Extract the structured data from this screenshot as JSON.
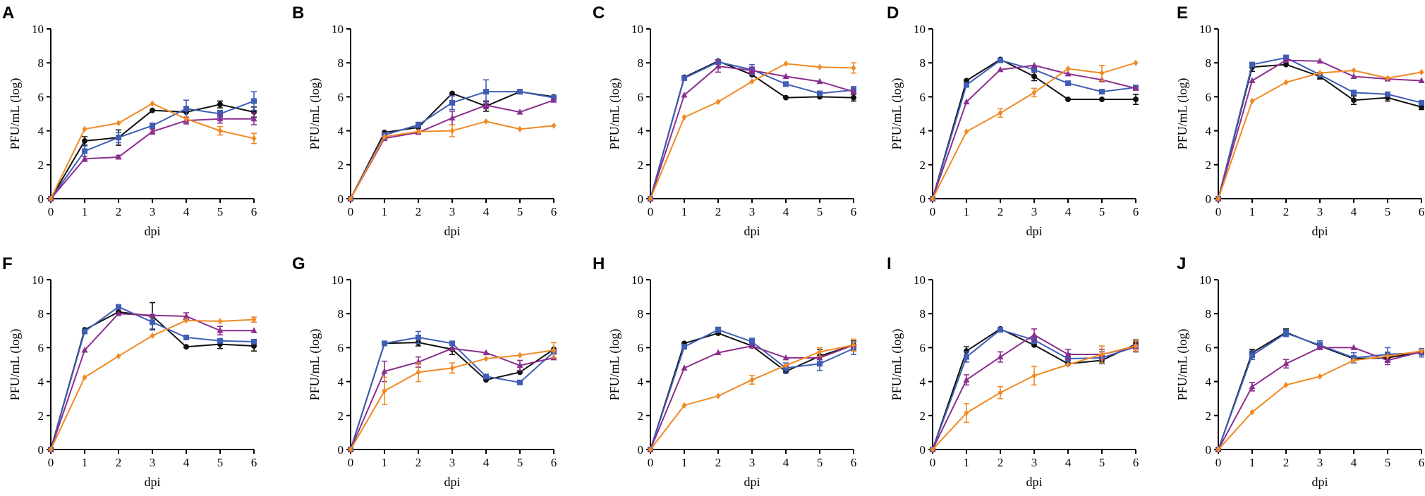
{
  "colors": {
    "black": "#111111",
    "blue": "#3f5eb5",
    "purple": "#8b2f8f",
    "orange": "#f08a24"
  },
  "chart_data": [
    {
      "panel": "A",
      "type": "line",
      "xlabel": "dpi",
      "ylabel": "PFU/mL (log)",
      "x": [
        0,
        1,
        2,
        3,
        4,
        5,
        6
      ],
      "ylim": [
        0,
        10
      ],
      "yticks": [
        0,
        2,
        4,
        6,
        8,
        10
      ],
      "series": [
        {
          "name": "black",
          "marker": "circle",
          "values": [
            0,
            3.4,
            3.6,
            5.2,
            5.1,
            5.55,
            5.1
          ],
          "errors": [
            0,
            0.25,
            0.45,
            0,
            0.3,
            0.2,
            0.3
          ]
        },
        {
          "name": "blue",
          "marker": "square",
          "values": [
            0,
            2.8,
            3.6,
            4.3,
            5.3,
            5.0,
            5.75
          ],
          "errors": [
            0,
            0.3,
            0.3,
            0.15,
            0.5,
            0.2,
            0.55
          ]
        },
        {
          "name": "purple",
          "marker": "triangle",
          "values": [
            0,
            2.35,
            2.45,
            3.95,
            4.6,
            4.7,
            4.7
          ],
          "errors": [
            0,
            0.15,
            0.1,
            0.15,
            0.2,
            0.25,
            0.35
          ]
        },
        {
          "name": "orange",
          "marker": "diamond",
          "values": [
            0,
            4.1,
            4.45,
            5.6,
            4.7,
            4.0,
            3.55
          ],
          "errors": [
            0,
            0,
            0,
            0,
            0,
            0.25,
            0.3
          ]
        }
      ]
    },
    {
      "panel": "B",
      "type": "line",
      "xlabel": "dpi",
      "ylabel": "PFU/mL (log)",
      "x": [
        0,
        1,
        2,
        3,
        4,
        5,
        6
      ],
      "ylim": [
        0,
        10
      ],
      "yticks": [
        0,
        2,
        4,
        6,
        8,
        10
      ],
      "series": [
        {
          "name": "black",
          "marker": "circle",
          "values": [
            0,
            3.9,
            4.2,
            6.2,
            5.45,
            6.3,
            6.0
          ],
          "errors": [
            0,
            0,
            0,
            0,
            0.3,
            0,
            0
          ]
        },
        {
          "name": "blue",
          "marker": "square",
          "values": [
            0,
            3.75,
            4.35,
            5.65,
            6.3,
            6.3,
            5.95
          ],
          "errors": [
            0,
            0,
            0.15,
            0.4,
            0.7,
            0,
            0
          ]
        },
        {
          "name": "purple",
          "marker": "triangle",
          "values": [
            0,
            3.55,
            3.9,
            4.75,
            5.5,
            5.1,
            5.8
          ],
          "errors": [
            0,
            0,
            0,
            0.4,
            0.2,
            0,
            0
          ]
        },
        {
          "name": "orange",
          "marker": "diamond",
          "values": [
            0,
            3.65,
            3.95,
            4.0,
            4.55,
            4.1,
            4.3
          ],
          "errors": [
            0,
            0,
            0,
            0.35,
            0,
            0,
            0
          ]
        }
      ]
    },
    {
      "panel": "C",
      "type": "line",
      "xlabel": "dpi",
      "ylabel": "PFU/mL (log)",
      "x": [
        0,
        1,
        2,
        3,
        4,
        5,
        6
      ],
      "ylim": [
        0,
        10
      ],
      "yticks": [
        0,
        2,
        4,
        6,
        8,
        10
      ],
      "series": [
        {
          "name": "black",
          "marker": "circle",
          "values": [
            0,
            7.15,
            8.1,
            7.3,
            5.95,
            6.0,
            5.95
          ],
          "errors": [
            0,
            0,
            0,
            0,
            0,
            0,
            0.2
          ]
        },
        {
          "name": "blue",
          "marker": "square",
          "values": [
            0,
            7.1,
            8.05,
            7.6,
            6.75,
            6.2,
            6.4
          ],
          "errors": [
            0,
            0,
            0,
            0.3,
            0,
            0,
            0.2
          ]
        },
        {
          "name": "purple",
          "marker": "triangle",
          "values": [
            0,
            6.1,
            7.8,
            7.55,
            7.2,
            6.9,
            6.3
          ],
          "errors": [
            0,
            0,
            0.35,
            0.2,
            0,
            0,
            0
          ]
        },
        {
          "name": "orange",
          "marker": "diamond",
          "values": [
            0,
            4.8,
            5.7,
            6.9,
            7.95,
            7.75,
            7.7
          ],
          "errors": [
            0,
            0,
            0,
            0,
            0,
            0,
            0.3
          ]
        }
      ]
    },
    {
      "panel": "D",
      "type": "line",
      "xlabel": "dpi",
      "ylabel": "PFU/mL (log)",
      "x": [
        0,
        1,
        2,
        3,
        4,
        5,
        6
      ],
      "ylim": [
        0,
        10
      ],
      "yticks": [
        0,
        2,
        4,
        6,
        8,
        10
      ],
      "series": [
        {
          "name": "black",
          "marker": "circle",
          "values": [
            0,
            6.95,
            8.2,
            7.2,
            5.85,
            5.85,
            5.85
          ],
          "errors": [
            0,
            0,
            0,
            0.25,
            0,
            0,
            0.3
          ]
        },
        {
          "name": "blue",
          "marker": "square",
          "values": [
            0,
            6.7,
            8.15,
            7.6,
            6.8,
            6.3,
            6.55
          ],
          "errors": [
            0,
            0,
            0,
            0,
            0,
            0,
            0
          ]
        },
        {
          "name": "purple",
          "marker": "triangle",
          "values": [
            0,
            5.7,
            7.6,
            7.85,
            7.35,
            7.0,
            6.5
          ],
          "errors": [
            0,
            0,
            0,
            0,
            0,
            0,
            0
          ]
        },
        {
          "name": "orange",
          "marker": "diamond",
          "values": [
            0,
            3.95,
            5.05,
            6.25,
            7.65,
            7.4,
            8.0
          ],
          "errors": [
            0,
            0,
            0.25,
            0.25,
            0,
            0.45,
            0
          ]
        }
      ]
    },
    {
      "panel": "E",
      "type": "line",
      "xlabel": "dpi",
      "ylabel": "PFU/mL (log)",
      "x": [
        0,
        1,
        2,
        3,
        4,
        5,
        6
      ],
      "ylim": [
        0,
        10
      ],
      "yticks": [
        0,
        2,
        4,
        6,
        8,
        10
      ],
      "series": [
        {
          "name": "black",
          "marker": "circle",
          "values": [
            0,
            7.75,
            7.9,
            7.2,
            5.8,
            5.95,
            5.4
          ],
          "errors": [
            0,
            0.25,
            0,
            0.15,
            0.25,
            0.2,
            0.15
          ]
        },
        {
          "name": "blue",
          "marker": "square",
          "values": [
            0,
            7.9,
            8.3,
            7.3,
            6.25,
            6.15,
            5.65
          ],
          "errors": [
            0,
            0,
            0.15,
            0,
            0,
            0,
            0
          ]
        },
        {
          "name": "purple",
          "marker": "triangle",
          "values": [
            0,
            6.95,
            8.15,
            8.1,
            7.2,
            7.05,
            6.95
          ],
          "errors": [
            0,
            0,
            0,
            0,
            0,
            0,
            0
          ]
        },
        {
          "name": "orange",
          "marker": "diamond",
          "values": [
            0,
            5.75,
            6.85,
            7.4,
            7.55,
            7.1,
            7.45
          ],
          "errors": [
            0,
            0,
            0,
            0,
            0,
            0,
            0
          ]
        }
      ]
    },
    {
      "panel": "F",
      "type": "line",
      "xlabel": "dpi",
      "ylabel": "PFU/mL (log)",
      "x": [
        0,
        1,
        2,
        3,
        4,
        5,
        6
      ],
      "ylim": [
        0,
        10
      ],
      "yticks": [
        0,
        2,
        4,
        6,
        8,
        10
      ],
      "series": [
        {
          "name": "black",
          "marker": "circle",
          "values": [
            0,
            7.05,
            8.1,
            7.85,
            6.05,
            6.2,
            6.1
          ],
          "errors": [
            0,
            0,
            0,
            0.8,
            0,
            0.25,
            0.3
          ]
        },
        {
          "name": "blue",
          "marker": "square",
          "values": [
            0,
            6.95,
            8.4,
            7.5,
            6.6,
            6.4,
            6.35
          ],
          "errors": [
            0,
            0,
            0,
            0.4,
            0,
            0,
            0
          ]
        },
        {
          "name": "purple",
          "marker": "triangle",
          "values": [
            0,
            5.85,
            8.0,
            7.9,
            7.85,
            7.0,
            7.0
          ],
          "errors": [
            0,
            0,
            0,
            0,
            0.2,
            0.25,
            0
          ]
        },
        {
          "name": "orange",
          "marker": "diamond",
          "values": [
            0,
            4.25,
            5.5,
            6.7,
            7.6,
            7.55,
            7.65
          ],
          "errors": [
            0,
            0,
            0,
            0,
            0,
            0,
            0.15
          ]
        }
      ]
    },
    {
      "panel": "G",
      "type": "line",
      "xlabel": "dpi",
      "ylabel": "PFU/mL (log)",
      "x": [
        0,
        1,
        2,
        3,
        4,
        5,
        6
      ],
      "ylim": [
        0,
        10
      ],
      "yticks": [
        0,
        2,
        4,
        6,
        8,
        10
      ],
      "series": [
        {
          "name": "black",
          "marker": "circle",
          "values": [
            0,
            6.25,
            6.3,
            5.9,
            4.1,
            4.55,
            5.9
          ],
          "errors": [
            0,
            0,
            0.2,
            0.3,
            0,
            0,
            0
          ]
        },
        {
          "name": "blue",
          "marker": "square",
          "values": [
            0,
            6.25,
            6.6,
            6.25,
            4.3,
            3.95,
            5.75
          ],
          "errors": [
            0,
            0,
            0.35,
            0,
            0,
            0,
            0
          ]
        },
        {
          "name": "purple",
          "marker": "triangle",
          "values": [
            0,
            4.6,
            5.15,
            5.95,
            5.7,
            4.95,
            5.4
          ],
          "errors": [
            0,
            0.6,
            0.3,
            0,
            0,
            0.3,
            0
          ]
        },
        {
          "name": "orange",
          "marker": "diamond",
          "values": [
            0,
            3.45,
            4.55,
            4.8,
            5.35,
            5.55,
            5.85
          ],
          "errors": [
            0,
            0.8,
            0.55,
            0.3,
            0,
            0,
            0.45
          ]
        }
      ]
    },
    {
      "panel": "H",
      "type": "line",
      "xlabel": "dpi",
      "ylabel": "PFU/mL (log)",
      "x": [
        0,
        1,
        2,
        3,
        4,
        5,
        6
      ],
      "ylim": [
        0,
        10
      ],
      "yticks": [
        0,
        2,
        4,
        6,
        8,
        10
      ],
      "series": [
        {
          "name": "black",
          "marker": "circle",
          "values": [
            0,
            6.25,
            6.85,
            6.1,
            4.6,
            5.5,
            6.15
          ],
          "errors": [
            0,
            0,
            0,
            0,
            0,
            0.4,
            0.25
          ]
        },
        {
          "name": "blue",
          "marker": "square",
          "values": [
            0,
            6.05,
            7.05,
            6.35,
            4.8,
            5.05,
            5.95
          ],
          "errors": [
            0,
            0,
            0.15,
            0.2,
            0.3,
            0.4,
            0.35
          ]
        },
        {
          "name": "purple",
          "marker": "triangle",
          "values": [
            0,
            4.8,
            5.7,
            6.1,
            5.4,
            5.4,
            6.15
          ],
          "errors": [
            0,
            0,
            0,
            0,
            0,
            0,
            0
          ]
        },
        {
          "name": "orange",
          "marker": "diamond",
          "values": [
            0,
            2.6,
            3.15,
            4.1,
            4.95,
            5.75,
            6.15
          ],
          "errors": [
            0,
            0,
            0,
            0.25,
            0,
            0.25,
            0.35
          ]
        }
      ]
    },
    {
      "panel": "I",
      "type": "line",
      "xlabel": "dpi",
      "ylabel": "PFU/mL (log)",
      "x": [
        0,
        1,
        2,
        3,
        4,
        5,
        6
      ],
      "ylim": [
        0,
        10
      ],
      "yticks": [
        0,
        2,
        4,
        6,
        8,
        10
      ],
      "series": [
        {
          "name": "black",
          "marker": "circle",
          "values": [
            0,
            5.8,
            7.1,
            6.15,
            5.05,
            5.25,
            6.2
          ],
          "errors": [
            0,
            0.25,
            0,
            0,
            0,
            0,
            0.25
          ]
        },
        {
          "name": "blue",
          "marker": "square",
          "values": [
            0,
            5.45,
            7.05,
            6.45,
            5.35,
            5.4,
            6.05
          ],
          "errors": [
            0,
            0.3,
            0,
            0.2,
            0.3,
            0.35,
            0.3
          ]
        },
        {
          "name": "purple",
          "marker": "triangle",
          "values": [
            0,
            4.1,
            5.45,
            6.75,
            5.6,
            5.6,
            6.05
          ],
          "errors": [
            0,
            0.3,
            0.3,
            0.35,
            0.3,
            0.3,
            0.3
          ]
        },
        {
          "name": "orange",
          "marker": "diamond",
          "values": [
            0,
            2.15,
            3.35,
            4.35,
            5.0,
            5.6,
            6.1
          ],
          "errors": [
            0,
            0.55,
            0.35,
            0.55,
            0,
            0.5,
            0.3
          ]
        }
      ]
    },
    {
      "panel": "J",
      "type": "line",
      "xlabel": "dpi",
      "ylabel": "PFU/mL (log)",
      "x": [
        0,
        1,
        2,
        3,
        4,
        5,
        6
      ],
      "ylim": [
        0,
        10
      ],
      "yticks": [
        0,
        2,
        4,
        6,
        8,
        10
      ],
      "series": [
        {
          "name": "black",
          "marker": "circle",
          "values": [
            0,
            5.7,
            6.9,
            6.1,
            5.35,
            5.4,
            5.75
          ],
          "errors": [
            0,
            0.2,
            0.2,
            0.2,
            0,
            0,
            0
          ]
        },
        {
          "name": "blue",
          "marker": "square",
          "values": [
            0,
            5.55,
            6.85,
            6.15,
            5.4,
            5.6,
            5.7
          ],
          "errors": [
            0,
            0.25,
            0.2,
            0.25,
            0.3,
            0.4,
            0.25
          ]
        },
        {
          "name": "purple",
          "marker": "triangle",
          "values": [
            0,
            3.7,
            5.05,
            6.0,
            6.0,
            5.25,
            5.75
          ],
          "errors": [
            0,
            0.25,
            0.25,
            0,
            0,
            0.25,
            0
          ]
        },
        {
          "name": "orange",
          "marker": "diamond",
          "values": [
            0,
            2.2,
            3.8,
            4.3,
            5.25,
            5.5,
            5.8
          ],
          "errors": [
            0,
            0,
            0,
            0,
            0,
            0,
            0
          ]
        }
      ]
    }
  ]
}
